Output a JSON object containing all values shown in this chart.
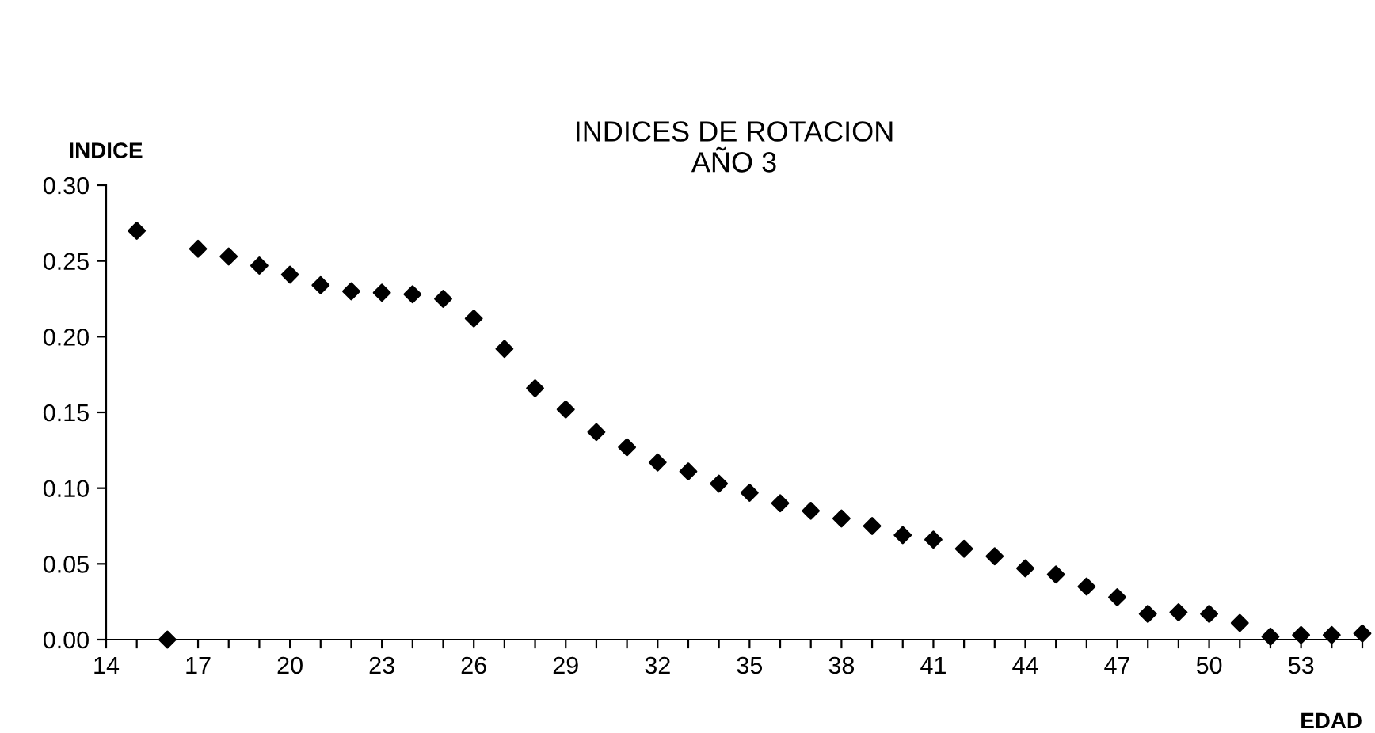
{
  "chart_data": {
    "type": "scatter",
    "title": "INDICES DE ROTACION\nAÑO 3",
    "xlabel": "EDAD",
    "ylabel": "INDICE",
    "marker": "diamond",
    "grid": false,
    "x": [
      15,
      16,
      17,
      18,
      19,
      20,
      21,
      22,
      23,
      24,
      25,
      26,
      27,
      28,
      29,
      30,
      31,
      32,
      33,
      34,
      35,
      36,
      37,
      38,
      39,
      40,
      41,
      42,
      43,
      44,
      45,
      46,
      47,
      48,
      49,
      50,
      51,
      52,
      53,
      54,
      55
    ],
    "series": [
      {
        "color": "#000000",
        "values": [
          0.27,
          0,
          0.258,
          0.253,
          0.247,
          0.241,
          0.234,
          0.23,
          0.229,
          0.228,
          0.225,
          0.212,
          0.192,
          0.166,
          0.152,
          0.137,
          0.127,
          0.117,
          0.111,
          0.103,
          0.097,
          0.09,
          0.085,
          0.08,
          0.075,
          0.069,
          0.066,
          0.06,
          0.055,
          0.047,
          0.043,
          0.035,
          0.028,
          0.017,
          0.018,
          0.017,
          0.011,
          0.002,
          0.003,
          0.003,
          0.004
        ]
      }
    ],
    "xlim": [
      14,
      55
    ],
    "ylim": [
      0,
      0.3
    ],
    "xticks": [
      14,
      {
        "value": 15,
        "label": null
      },
      {
        "value": 16,
        "label": null
      },
      17,
      {
        "value": 18,
        "label": null
      },
      {
        "value": 19,
        "label": null
      },
      20,
      {
        "value": 21,
        "label": null
      },
      {
        "value": 22,
        "label": null
      },
      23,
      {
        "value": 24,
        "label": null
      },
      {
        "value": 25,
        "label": null
      },
      26,
      {
        "value": 27,
        "label": null
      },
      {
        "value": 28,
        "label": null
      },
      29,
      {
        "value": 30,
        "label": null
      },
      {
        "value": 31,
        "label": null
      },
      32,
      {
        "value": 33,
        "label": null
      },
      {
        "value": 34,
        "label": null
      },
      35,
      {
        "value": 36,
        "label": null
      },
      {
        "value": 37,
        "label": null
      },
      38,
      {
        "value": 39,
        "label": null
      },
      {
        "value": 40,
        "label": null
      },
      41,
      {
        "value": 42,
        "label": null
      },
      {
        "value": 43,
        "label": null
      },
      44,
      {
        "value": 45,
        "label": null
      },
      {
        "value": 46,
        "label": null
      },
      47,
      {
        "value": 48,
        "label": null
      },
      {
        "value": 49,
        "label": null
      },
      50,
      {
        "value": 51,
        "label": null
      },
      {
        "value": 52,
        "label": null
      },
      53,
      {
        "value": 54,
        "label": null
      },
      {
        "value": 55,
        "label": null
      }
    ],
    "yticks": [
      {
        "value": 0,
        "label": "0.00"
      },
      {
        "value": 0.05,
        "label": "0.05"
      },
      {
        "value": 0.1,
        "label": "0.10"
      },
      {
        "value": 0.15,
        "label": "0.15"
      },
      {
        "value": 0.2,
        "label": "0.20"
      },
      {
        "value": 0.25,
        "label": "0.25"
      },
      {
        "value": 0.3,
        "label": "0.30"
      }
    ]
  }
}
